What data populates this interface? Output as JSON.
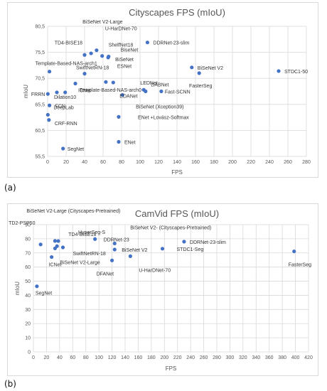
{
  "panels": [
    {
      "tag": "(a)"
    },
    {
      "tag": "(b)"
    }
  ],
  "chart_data": [
    {
      "type": "scatter",
      "title": "Cityscapes FPS (mIoU)",
      "xlabel": "FPS",
      "ylabel": "mIoU",
      "xlim": [
        0,
        280
      ],
      "ylim": [
        55.5,
        80.5
      ],
      "xticks": [
        0,
        20,
        40,
        60,
        80,
        100,
        120,
        140,
        160,
        180,
        200,
        220,
        240,
        260,
        280
      ],
      "yticks": [
        55.5,
        60.5,
        65.5,
        70.5,
        75.5,
        80.5
      ],
      "xtick_labels": [
        "0",
        "20",
        "40",
        "60",
        "80",
        "100",
        "120",
        "140",
        "160",
        "180",
        "200",
        "220",
        "240",
        "260",
        "280"
      ],
      "ytick_labels": [
        "55,5",
        "60,5",
        "65,5",
        "70,5",
        "75,5",
        "80,5"
      ],
      "grid": true,
      "marker_color": "#4472c4",
      "points": [
        {
          "label": "BiSeNet V2-Large",
          "x": 47,
          "y": 75.3
        },
        {
          "label": "U-HarDNet-70",
          "x": 53,
          "y": 75.9
        },
        {
          "label": "DDRNet-23-slim",
          "x": 108,
          "y": 77.4
        },
        {
          "label": "TD4-BISE18",
          "x": 40,
          "y": 75.0
        },
        {
          "label": "ShelfNet18",
          "x": 59,
          "y": 74.8
        },
        {
          "label": "BiseNet",
          "x": 66,
          "y": 74.7
        },
        {
          "label": "BiSeNet",
          "x": 65.5,
          "y": 74.5
        },
        {
          "label": "BiSeNet V2",
          "x": 156,
          "y": 72.6
        },
        {
          "label": "STDC1-50",
          "x": 250,
          "y": 71.9
        },
        {
          "label": "FasterSeg",
          "x": 164,
          "y": 71.5
        },
        {
          "label": "Template-Based-NAS-arch1",
          "x": 2,
          "y": 71.8
        },
        {
          "label": "SwiftNetRN-18",
          "x": 40,
          "y": 71.4
        },
        {
          "label": "FRRN",
          "x": 0.25,
          "y": 67.5
        },
        {
          "label": "ICNet",
          "x": 30,
          "y": 69.5
        },
        {
          "label": "ESNet",
          "x": 63,
          "y": 69.8
        },
        {
          "label": "LEDNet",
          "x": 71,
          "y": 69.7
        },
        {
          "label": "DABNet",
          "x": 104,
          "y": 68.3
        },
        {
          "label": "Template-Based-NAS-arch0",
          "x": 19,
          "y": 67.8
        },
        {
          "label": "Fast-SCNN",
          "x": 123,
          "y": 68.0
        },
        {
          "label": "Dilation10",
          "x": 10,
          "y": 67.8
        },
        {
          "label": "EDANet",
          "x": 81,
          "y": 67.3
        },
        {
          "label": "BiSeNet (Xception39)",
          "x": 106,
          "y": 68.0
        },
        {
          "label": "FCN",
          "x": 2,
          "y": 65.3
        },
        {
          "label": "DeepLab",
          "x": 0.25,
          "y": 63.5
        },
        {
          "label": "CRF-RNN",
          "x": 1.4,
          "y": 62.5
        },
        {
          "label": "ENet +Lovász-Softmax",
          "x": 76.9,
          "y": 63.1
        },
        {
          "label": "ENet",
          "x": 76.9,
          "y": 58.3
        },
        {
          "label": "SegNet",
          "x": 16.7,
          "y": 57.0
        }
      ]
    },
    {
      "type": "scatter",
      "title": "CamVid FPS (mIoU)",
      "xlabel": "FPS",
      "ylabel": "mIoU",
      "xlim": [
        0,
        420
      ],
      "ylim": [
        0,
        90
      ],
      "xticks": [
        0,
        20,
        40,
        60,
        80,
        100,
        120,
        140,
        160,
        180,
        200,
        220,
        240,
        260,
        280,
        300,
        320,
        340,
        360,
        380,
        400,
        420
      ],
      "yticks": [
        0,
        10,
        20,
        30,
        40,
        50,
        60,
        70,
        80,
        90
      ],
      "xtick_labels": [
        "0",
        "20",
        "40",
        "60",
        "80",
        "100",
        "120",
        "140",
        "160",
        "180",
        "200",
        "220",
        "240",
        "260",
        "280",
        "300",
        "320",
        "340",
        "360",
        "380",
        "400",
        "420"
      ],
      "ytick_labels": [
        "0",
        "10",
        "20",
        "30",
        "40",
        "50",
        "60",
        "70",
        "80",
        "90"
      ],
      "grid": true,
      "marker_color": "#4472c4",
      "points": [
        {
          "label": "BiSeNet V2-Large (Cityscapes-Pretrained)",
          "x": 33,
          "y": 78.5
        },
        {
          "label": "TD2-PSP50",
          "x": 11,
          "y": 76.0
        },
        {
          "label": "HyperSeg-S",
          "x": 38,
          "y": 78.4
        },
        {
          "label": "TD4-BISE18",
          "x": 36,
          "y": 74.8
        },
        {
          "label": "SwiftNetRN-18",
          "x": 45,
          "y": 73.9
        },
        {
          "label": "ICNet",
          "x": 27.8,
          "y": 67.1
        },
        {
          "label": "BiSeNet V2-Large",
          "x": 33,
          "y": 73.2
        },
        {
          "label": "BiSeNet V2- (Cityscapes-Pretrained)",
          "x": 124,
          "y": 76.7
        },
        {
          "label": "DDRNet-23",
          "x": 94,
          "y": 79.8
        },
        {
          "label": "BiSeNet V2",
          "x": 124,
          "y": 72.4
        },
        {
          "label": "U-HarDNet-70",
          "x": 148,
          "y": 67.7
        },
        {
          "label": "STDC1-Seg",
          "x": 197,
          "y": 73.0
        },
        {
          "label": "DDRNet-23-slim",
          "x": 230,
          "y": 78.0
        },
        {
          "label": "DFANet",
          "x": 120,
          "y": 64.7
        },
        {
          "label": "FasterSeg",
          "x": 398,
          "y": 71.1
        },
        {
          "label": "SegNet",
          "x": 5.3,
          "y": 46.4
        }
      ]
    }
  ]
}
